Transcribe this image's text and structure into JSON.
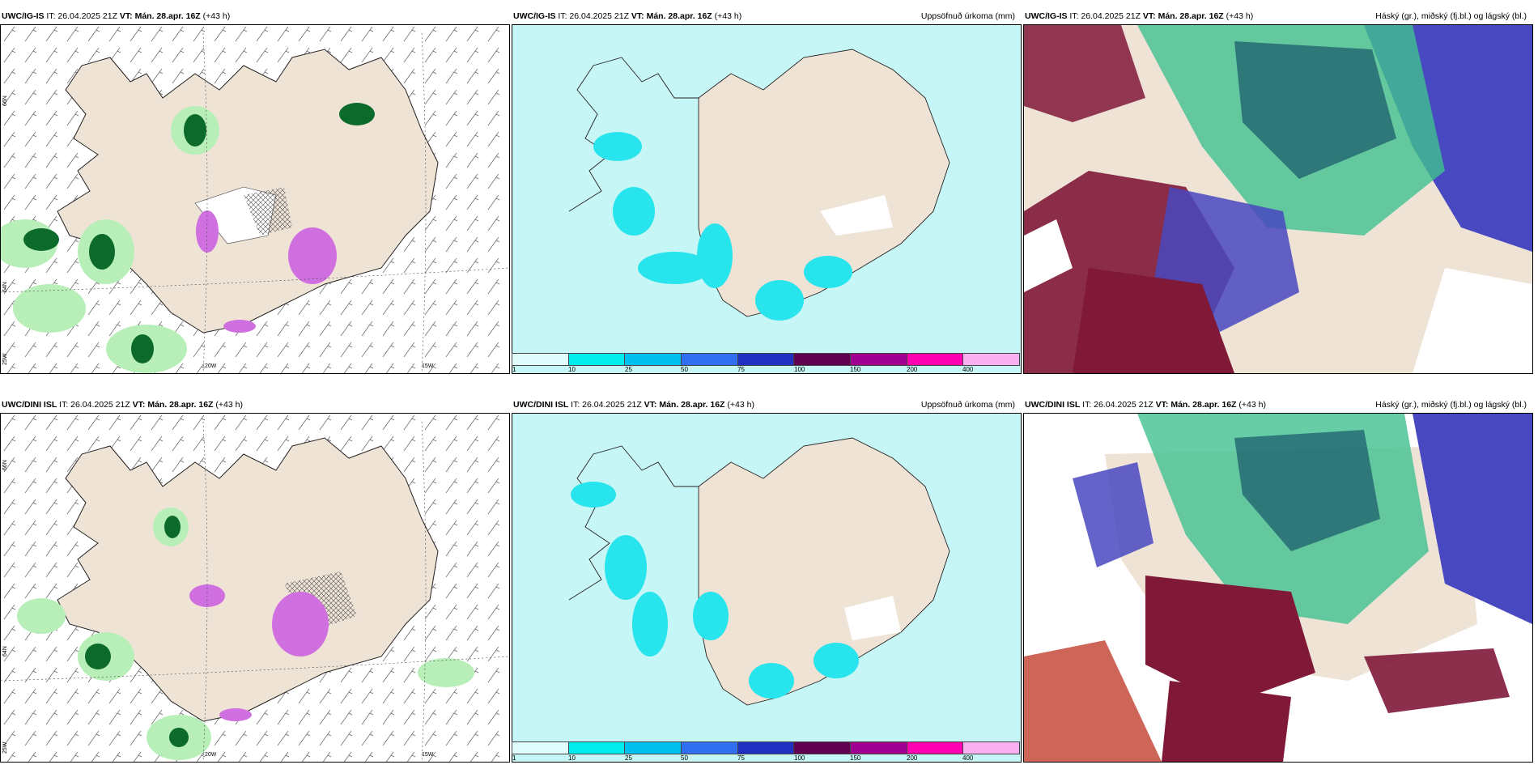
{
  "panels": {
    "ig": {
      "model_label": "UWC/IG-IS",
      "it_label": "IT: 26.04.2025 21Z",
      "vt_label": "VT: Mán. 28.apr. 16Z",
      "lead_label": "(+43 h)"
    },
    "dini": {
      "model_label": "UWC/DINI ISL",
      "it_label": "IT: 26.04.2025 21Z",
      "vt_label": "VT: Mán. 28.apr. 16Z",
      "lead_label": "(+43 h)"
    }
  },
  "titles": {
    "precip": "Uppsöfnuð úrkoma (mm)",
    "clouds": "Háský (gr.), miðský (fj.bl.) og lágský (bl.)"
  },
  "colorbar": {
    "colors": [
      "#e0fcfc",
      "#00ecec",
      "#00c0f0",
      "#3070f0",
      "#2030c0",
      "#600050",
      "#a00090",
      "#ff00b0",
      "#f8b0f0"
    ],
    "labels": [
      "1",
      "10",
      "25",
      "50",
      "75",
      "100",
      "150",
      "200",
      "400"
    ]
  },
  "axis_labels": {
    "lat_66": "66N",
    "lat_64": "64N",
    "lon_25w": "25W",
    "lon_20w": "20W",
    "lon_15w": "15W"
  },
  "colors": {
    "land": "#efe3d6",
    "sea_precip": "#c7f6f6",
    "precip_strong": "#28e4ec",
    "snow_green": "#b8efb8",
    "snow_dark": "#0c6a2a",
    "magenta": "#d070e0",
    "cloud_high": "#1e5e6e",
    "cloud_mid": "#40c090",
    "cloud_low_blue": "#4848c0",
    "cloud_low_red": "#801838"
  }
}
